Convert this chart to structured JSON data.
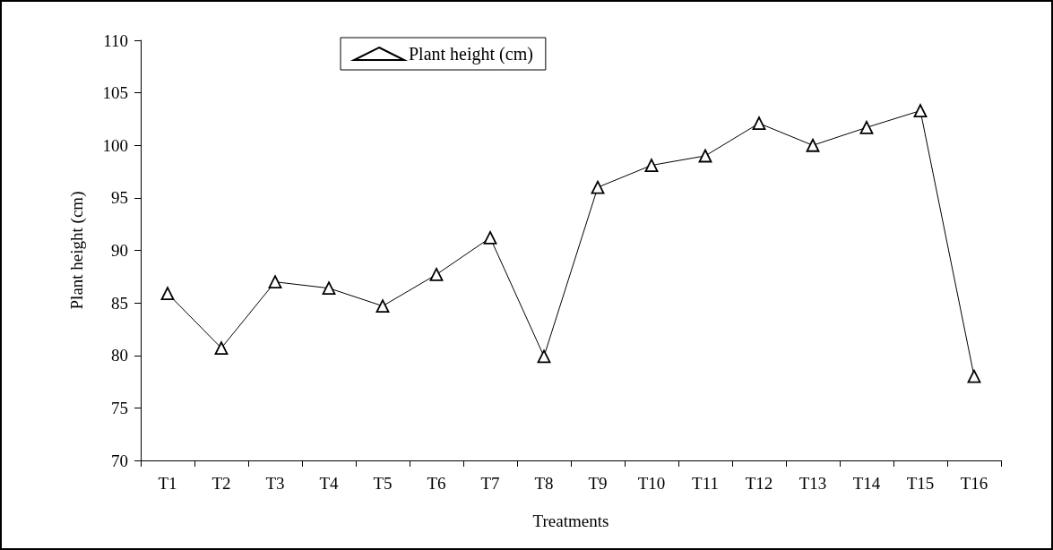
{
  "chart_data": {
    "type": "line",
    "xlabel": "Treatments",
    "ylabel": "Plant height (cm)",
    "categories": [
      "T1",
      "T2",
      "T3",
      "T4",
      "T5",
      "T6",
      "T7",
      "T8",
      "T9",
      "T10",
      "T11",
      "T12",
      "T13",
      "T14",
      "T15",
      "T16"
    ],
    "series": [
      {
        "name": "Plant height (cm)",
        "color": "#000000",
        "values": [
          85.9,
          80.7,
          87.0,
          86.4,
          84.7,
          87.7,
          91.2,
          79.9,
          96.0,
          98.1,
          99.0,
          102.1,
          100.0,
          101.7,
          103.3,
          78.0
        ]
      }
    ],
    "ylim": [
      70,
      110
    ],
    "yticks": [
      70,
      75,
      80,
      85,
      90,
      95,
      100,
      105,
      110
    ],
    "grid": false,
    "legend": "top left",
    "marker": "triangle",
    "line_style": "solid"
  }
}
